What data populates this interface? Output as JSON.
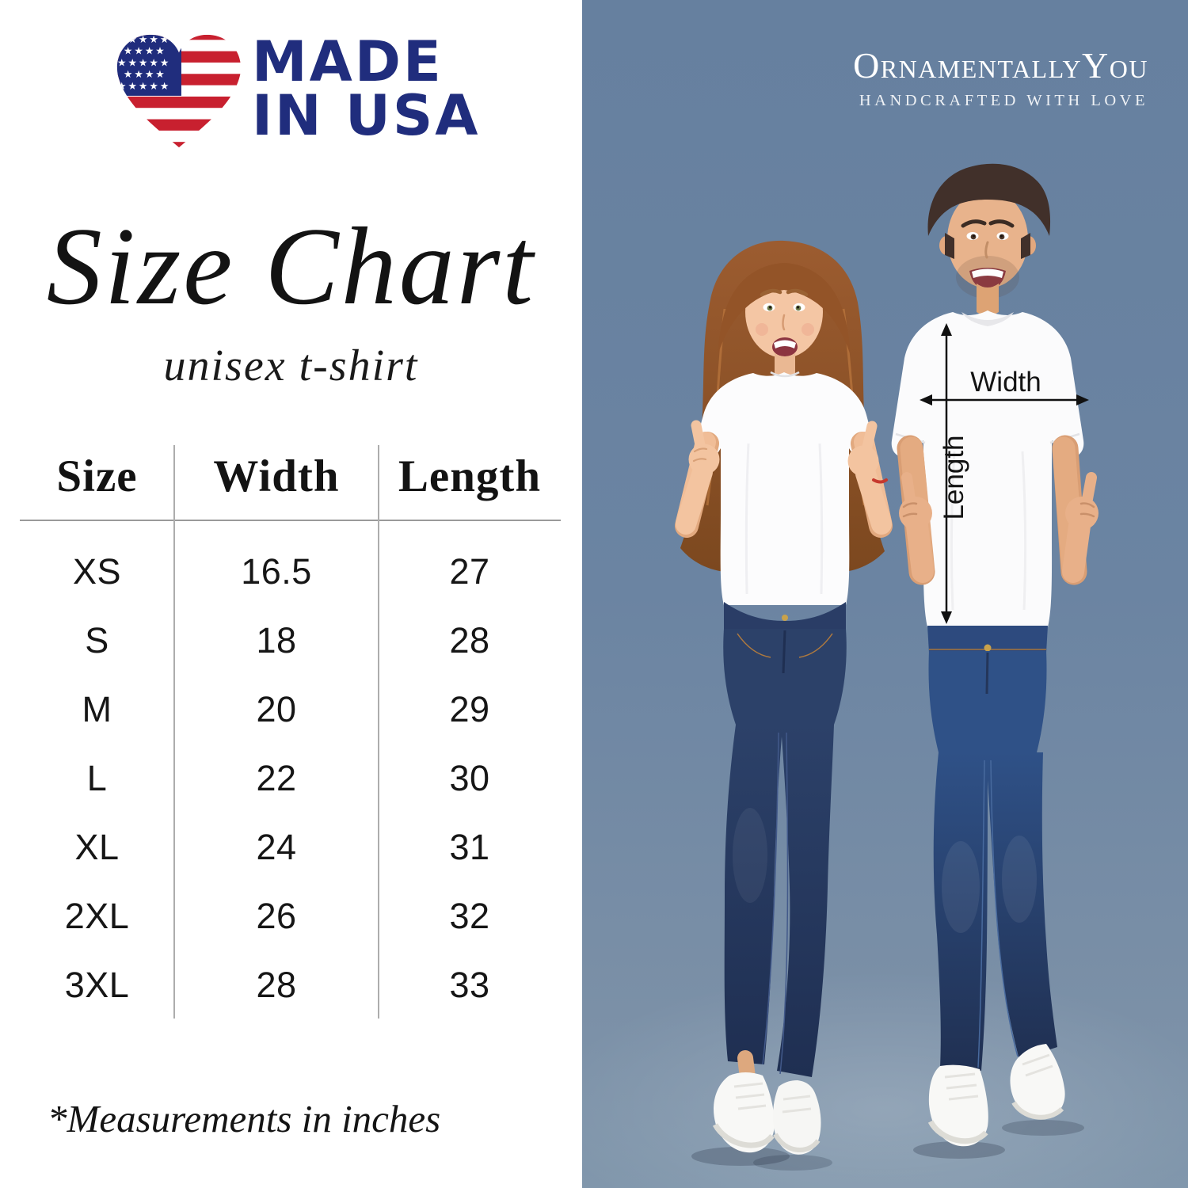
{
  "badge": {
    "line1": "MADE",
    "line2": "IN USA"
  },
  "title": "Size Chart",
  "subtitle": "unisex t-shirt",
  "size_table": {
    "headers": [
      "Size",
      "Width",
      "Length"
    ],
    "rows": [
      [
        "XS",
        "16.5",
        "27"
      ],
      [
        "S",
        "18",
        "28"
      ],
      [
        "M",
        "20",
        "29"
      ],
      [
        "L",
        "22",
        "30"
      ],
      [
        "XL",
        "24",
        "31"
      ],
      [
        "2XL",
        "26",
        "32"
      ],
      [
        "3XL",
        "28",
        "33"
      ]
    ]
  },
  "footnote": "*Measurements in inches",
  "brand": {
    "name": "OrnamentallyYou",
    "tagline": "HANDCRAFTED WITH LOVE"
  },
  "photo": {
    "width_label": "Width",
    "length_label": "Length"
  },
  "colors": {
    "badge_navy": "#202d7d",
    "flag_red": "#c8202f",
    "photo_background": "#6b83a1",
    "text": "#131313"
  }
}
